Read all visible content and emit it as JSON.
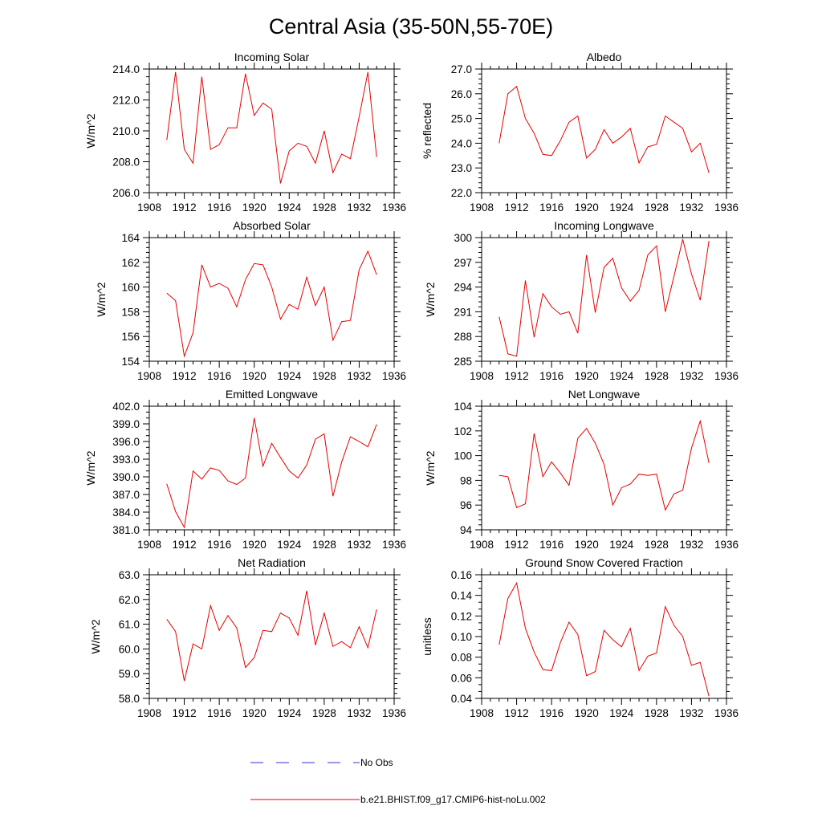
{
  "figure": {
    "title": "Central Asia (35-50N,55-70E)"
  },
  "legend": {
    "items": [
      {
        "label": "No Obs",
        "color": "#3333cc",
        "style": "dashed"
      },
      {
        "label": "b.e21.BHIST.f09_g17.CMIP6-hist-noLu.002",
        "color": "#e60000",
        "style": "solid"
      }
    ]
  },
  "chart_data": [
    {
      "type": "line",
      "title": "Incoming Solar",
      "ylabel": "W/m^2",
      "xlim": [
        1908,
        1936
      ],
      "ylim": [
        206.0,
        214.0
      ],
      "xticks": [
        "1908",
        "1912",
        "1916",
        "1920",
        "1924",
        "1928",
        "1932",
        "1936"
      ],
      "yticks": [
        "206.0",
        "208.0",
        "210.0",
        "212.0",
        "214.0"
      ],
      "x": [
        1910,
        1911,
        1912,
        1913,
        1914,
        1915,
        1916,
        1917,
        1918,
        1919,
        1920,
        1921,
        1922,
        1923,
        1924,
        1925,
        1926,
        1927,
        1928,
        1929,
        1930,
        1931,
        1932,
        1933,
        1934
      ],
      "series": [
        {
          "name": "b.e21.BHIST.f09_g17.CMIP6-hist-noLu.002",
          "color": "#e60000",
          "values": [
            209.4,
            213.8,
            208.8,
            207.9,
            213.5,
            208.8,
            209.1,
            210.2,
            210.2,
            213.7,
            211.0,
            211.8,
            211.4,
            206.6,
            208.7,
            209.2,
            209.0,
            207.9,
            210.0,
            207.3,
            208.5,
            208.2,
            210.9,
            213.8,
            208.3
          ]
        }
      ]
    },
    {
      "type": "line",
      "title": "Albedo",
      "ylabel": "% reflected",
      "xlim": [
        1908,
        1936
      ],
      "ylim": [
        22.0,
        27.0
      ],
      "xticks": [
        "1908",
        "1912",
        "1916",
        "1920",
        "1924",
        "1928",
        "1932",
        "1936"
      ],
      "yticks": [
        "22.0",
        "23.0",
        "24.0",
        "25.0",
        "26.0",
        "27.0"
      ],
      "x": [
        1910,
        1911,
        1912,
        1913,
        1914,
        1915,
        1916,
        1917,
        1918,
        1919,
        1920,
        1921,
        1922,
        1923,
        1924,
        1925,
        1926,
        1927,
        1928,
        1929,
        1930,
        1931,
        1932,
        1933,
        1934
      ],
      "series": [
        {
          "name": "b.e21.BHIST.f09_g17.CMIP6-hist-noLu.002",
          "color": "#e60000",
          "values": [
            24.0,
            26.0,
            26.3,
            25.0,
            24.4,
            23.55,
            23.5,
            24.1,
            24.85,
            25.1,
            23.4,
            23.75,
            24.55,
            24.0,
            24.25,
            24.6,
            23.2,
            23.85,
            23.95,
            25.1,
            24.85,
            24.6,
            23.65,
            24.0,
            22.8
          ]
        }
      ]
    },
    {
      "type": "line",
      "title": "Absorbed Solar",
      "ylabel": "W/m^2",
      "xlim": [
        1908,
        1936
      ],
      "ylim": [
        154,
        164
      ],
      "xticks": [
        "1908",
        "1912",
        "1916",
        "1920",
        "1924",
        "1928",
        "1932",
        "1936"
      ],
      "yticks": [
        "154",
        "156",
        "158",
        "160",
        "162",
        "164"
      ],
      "x": [
        1910,
        1911,
        1912,
        1913,
        1914,
        1915,
        1916,
        1917,
        1918,
        1919,
        1920,
        1921,
        1922,
        1923,
        1924,
        1925,
        1926,
        1927,
        1928,
        1929,
        1930,
        1931,
        1932,
        1933,
        1934
      ],
      "series": [
        {
          "name": "b.e21.BHIST.f09_g17.CMIP6-hist-noLu.002",
          "color": "#e60000",
          "values": [
            159.5,
            158.9,
            154.4,
            156.3,
            161.8,
            160.0,
            160.3,
            159.9,
            158.4,
            160.6,
            161.9,
            161.8,
            160.0,
            157.4,
            158.6,
            158.2,
            160.8,
            158.5,
            160.0,
            155.7,
            157.2,
            157.3,
            161.4,
            162.9,
            161.0
          ]
        }
      ]
    },
    {
      "type": "line",
      "title": "Incoming Longwave",
      "ylabel": "W/m^2",
      "xlim": [
        1908,
        1936
      ],
      "ylim": [
        285,
        300
      ],
      "xticks": [
        "1908",
        "1912",
        "1916",
        "1920",
        "1924",
        "1928",
        "1932",
        "1936"
      ],
      "yticks": [
        "285",
        "288",
        "291",
        "294",
        "297",
        "300"
      ],
      "x": [
        1910,
        1911,
        1912,
        1913,
        1914,
        1915,
        1916,
        1917,
        1918,
        1919,
        1920,
        1921,
        1922,
        1923,
        1924,
        1925,
        1926,
        1927,
        1928,
        1929,
        1930,
        1931,
        1932,
        1933,
        1934
      ],
      "series": [
        {
          "name": "b.e21.BHIST.f09_g17.CMIP6-hist-noLu.002",
          "color": "#e60000",
          "values": [
            290.4,
            285.9,
            285.6,
            294.8,
            287.9,
            293.2,
            291.6,
            290.7,
            291.0,
            288.4,
            297.9,
            290.9,
            296.4,
            297.5,
            293.9,
            292.3,
            293.6,
            297.9,
            299.0,
            291.0,
            295.3,
            299.8,
            295.6,
            292.4,
            299.6
          ]
        }
      ]
    },
    {
      "type": "line",
      "title": "Emitted Longwave",
      "ylabel": "W/m^2",
      "xlim": [
        1908,
        1936
      ],
      "ylim": [
        381.0,
        402.0
      ],
      "xticks": [
        "1908",
        "1912",
        "1916",
        "1920",
        "1924",
        "1928",
        "1932",
        "1936"
      ],
      "yticks": [
        "381.0",
        "384.0",
        "387.0",
        "390.0",
        "393.0",
        "396.0",
        "399.0",
        "402.0"
      ],
      "x": [
        1910,
        1911,
        1912,
        1913,
        1914,
        1915,
        1916,
        1917,
        1918,
        1919,
        1920,
        1921,
        1922,
        1923,
        1924,
        1925,
        1926,
        1927,
        1928,
        1929,
        1930,
        1931,
        1932,
        1933,
        1934
      ],
      "series": [
        {
          "name": "b.e21.BHIST.f09_g17.CMIP6-hist-noLu.002",
          "color": "#e60000",
          "values": [
            388.8,
            384.1,
            381.4,
            391.0,
            389.6,
            391.5,
            391.1,
            389.3,
            388.7,
            389.8,
            400.0,
            391.8,
            395.7,
            393.3,
            391.0,
            389.8,
            392.0,
            396.4,
            397.3,
            386.7,
            392.5,
            396.8,
            396.0,
            395.1,
            398.9
          ]
        }
      ]
    },
    {
      "type": "line",
      "title": "Net Longwave",
      "ylabel": "W/m^2",
      "xlim": [
        1908,
        1936
      ],
      "ylim": [
        94,
        104
      ],
      "xticks": [
        "1908",
        "1912",
        "1916",
        "1920",
        "1924",
        "1928",
        "1932",
        "1936"
      ],
      "yticks": [
        "94",
        "96",
        "98",
        "100",
        "102",
        "104"
      ],
      "x": [
        1910,
        1911,
        1912,
        1913,
        1914,
        1915,
        1916,
        1917,
        1918,
        1919,
        1920,
        1921,
        1922,
        1923,
        1924,
        1925,
        1926,
        1927,
        1928,
        1929,
        1930,
        1931,
        1932,
        1933,
        1934
      ],
      "series": [
        {
          "name": "b.e21.BHIST.f09_g17.CMIP6-hist-noLu.002",
          "color": "#e60000",
          "values": [
            98.4,
            98.3,
            95.8,
            96.1,
            101.8,
            98.3,
            99.5,
            98.6,
            97.6,
            101.4,
            102.2,
            101.0,
            99.3,
            96.0,
            97.4,
            97.7,
            98.5,
            98.4,
            98.5,
            95.6,
            96.9,
            97.2,
            100.6,
            102.8,
            99.4
          ]
        }
      ]
    },
    {
      "type": "line",
      "title": "Net Radiation",
      "ylabel": "W/m^2",
      "xlim": [
        1908,
        1936
      ],
      "ylim": [
        58.0,
        63.0
      ],
      "xticks": [
        "1908",
        "1912",
        "1916",
        "1920",
        "1924",
        "1928",
        "1932",
        "1936"
      ],
      "yticks": [
        "58.0",
        "59.0",
        "60.0",
        "61.0",
        "62.0",
        "63.0"
      ],
      "x": [
        1910,
        1911,
        1912,
        1913,
        1914,
        1915,
        1916,
        1917,
        1918,
        1919,
        1920,
        1921,
        1922,
        1923,
        1924,
        1925,
        1926,
        1927,
        1928,
        1929,
        1930,
        1931,
        1932,
        1933,
        1934
      ],
      "series": [
        {
          "name": "b.e21.BHIST.f09_g17.CMIP6-hist-noLu.002",
          "color": "#e60000",
          "values": [
            61.2,
            60.7,
            58.7,
            60.2,
            60.0,
            61.75,
            60.75,
            61.35,
            60.85,
            59.25,
            59.65,
            60.75,
            60.7,
            61.45,
            61.25,
            60.55,
            62.35,
            60.15,
            61.45,
            60.1,
            60.3,
            60.05,
            60.9,
            60.05,
            61.6
          ]
        }
      ]
    },
    {
      "type": "line",
      "title": "Ground Snow Covered Fraction",
      "ylabel": "unitless",
      "xlim": [
        1908,
        1936
      ],
      "ylim": [
        0.04,
        0.16
      ],
      "xticks": [
        "1908",
        "1912",
        "1916",
        "1920",
        "1924",
        "1928",
        "1932",
        "1936"
      ],
      "yticks": [
        "0.04",
        "0.06",
        "0.08",
        "0.10",
        "0.12",
        "0.14",
        "0.16"
      ],
      "x": [
        1910,
        1911,
        1912,
        1913,
        1914,
        1915,
        1916,
        1917,
        1918,
        1919,
        1920,
        1921,
        1922,
        1923,
        1924,
        1925,
        1926,
        1927,
        1928,
        1929,
        1930,
        1931,
        1932,
        1933,
        1934
      ],
      "series": [
        {
          "name": "b.e21.BHIST.f09_g17.CMIP6-hist-noLu.002",
          "color": "#e60000",
          "values": [
            0.092,
            0.137,
            0.152,
            0.108,
            0.085,
            0.068,
            0.067,
            0.094,
            0.114,
            0.102,
            0.062,
            0.066,
            0.106,
            0.097,
            0.09,
            0.108,
            0.067,
            0.081,
            0.084,
            0.129,
            0.111,
            0.1,
            0.072,
            0.075,
            0.042
          ]
        }
      ]
    }
  ]
}
